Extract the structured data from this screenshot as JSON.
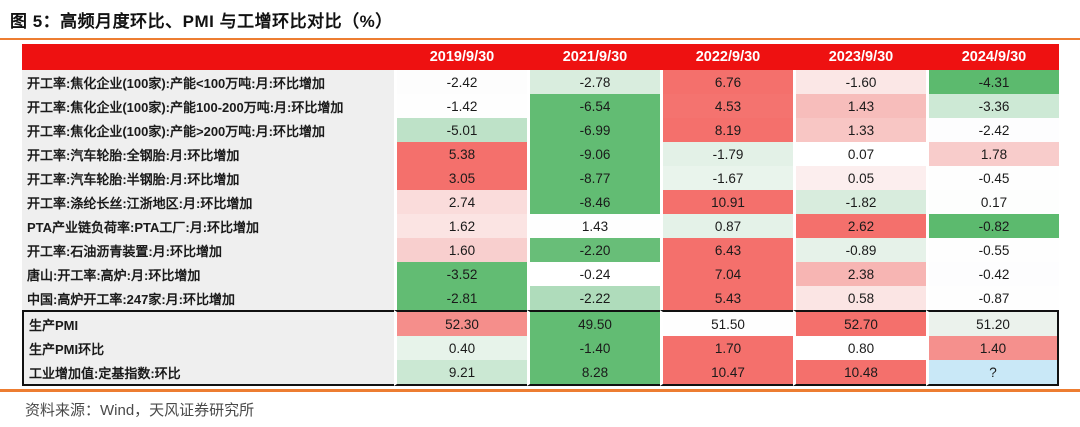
{
  "chart_data": {
    "type": "table",
    "title": "图 5：高频月度环比、PMI 与工增环比对比（%）",
    "columns": [
      "2019/9/30",
      "2021/9/30",
      "2022/9/30",
      "2023/9/30",
      "2024/9/30"
    ],
    "rows": [
      {
        "label": "开工率:焦化企业(100家):产能<100万吨:月:环比增加",
        "values": [
          "-2.42",
          "-2.78",
          "6.76",
          "-1.60",
          "-4.31"
        ],
        "colors": [
          "#FDFDFD",
          "#D9EDDE",
          "#F4706C",
          "#FBE7E6",
          "#5CBA6E"
        ]
      },
      {
        "label": "开工率:焦化企业(100家):产能100-200万吨:月:环比增加",
        "values": [
          "-1.42",
          "-6.54",
          "4.53",
          "1.43",
          "-3.36"
        ],
        "colors": [
          "#FEFEFE",
          "#62BC73",
          "#F4736F",
          "#F7BDBB",
          "#CDE9D5"
        ]
      },
      {
        "label": "开工率:焦化企业(100家):产能>200万吨:月:环比增加",
        "values": [
          "-5.01",
          "-6.99",
          "8.19",
          "1.33",
          "-2.42"
        ],
        "colors": [
          "#BEE2C8",
          "#62BC73",
          "#F4706C",
          "#F8C6C4",
          "#FDFDFE"
        ]
      },
      {
        "label": "开工率:汽车轮胎:全钢胎:月:环比增加",
        "values": [
          "5.38",
          "-9.06",
          "-1.79",
          "0.07",
          "1.78"
        ],
        "colors": [
          "#F4706C",
          "#62BC73",
          "#E3F1E7",
          "#FFFFFF",
          "#F8CCCB"
        ]
      },
      {
        "label": "开工率:汽车轮胎:半钢胎:月:环比增加",
        "values": [
          "3.05",
          "-8.77",
          "-1.67",
          "0.05",
          "-0.45"
        ],
        "colors": [
          "#F4706C",
          "#62BC73",
          "#E9F4EC",
          "#FCEEEE",
          "#FEFEFE"
        ]
      },
      {
        "label": "开工率:涤纶长丝:江浙地区:月:环比增加",
        "values": [
          "2.74",
          "-8.46",
          "10.91",
          "-1.82",
          "0.17"
        ],
        "colors": [
          "#FADCDB",
          "#62BC73",
          "#F4706C",
          "#D8ECDD",
          "#FDFEFD"
        ]
      },
      {
        "label": "PTA产业链负荷率:PTA工厂:月:环比增加",
        "values": [
          "1.62",
          "1.43",
          "0.87",
          "2.62",
          "-0.82"
        ],
        "colors": [
          "#FBE4E3",
          "#FEFEFE",
          "#E4F2E8",
          "#F4706C",
          "#5CBA6E"
        ]
      },
      {
        "label": "开工率:石油沥青装置:月:环比增加",
        "values": [
          "1.60",
          "-2.20",
          "6.43",
          "-0.89",
          "-0.55"
        ],
        "colors": [
          "#F8CFCE",
          "#68BE78",
          "#F4706C",
          "#E6F2E9",
          "#FEFEFE"
        ]
      },
      {
        "label": "唐山:开工率:高炉:月:环比增加",
        "values": [
          "-3.52",
          "-0.24",
          "7.04",
          "2.38",
          "-0.42"
        ],
        "colors": [
          "#62BC73",
          "#FFFFFF",
          "#F4706C",
          "#F7B5B3",
          "#FDFDFE"
        ]
      },
      {
        "label": "中国:高炉开工率:247家:月:环比增加",
        "values": [
          "-2.81",
          "-2.22",
          "5.43",
          "0.58",
          "-0.87"
        ],
        "colors": [
          "#62BC73",
          "#AFDCBB",
          "#F4706C",
          "#FBE5E4",
          "#FEFEFE"
        ]
      }
    ],
    "pmi_rows": [
      {
        "label": "生产PMI",
        "values": [
          "52.30",
          "49.50",
          "51.50",
          "52.70",
          "51.20"
        ],
        "colors": [
          "#F58E8B",
          "#62BC73",
          "#FEFEFE",
          "#F4706C",
          "#EBF2EC"
        ]
      },
      {
        "label": "生产PMI环比",
        "values": [
          "0.40",
          "-1.40",
          "1.70",
          "0.80",
          "1.40"
        ],
        "colors": [
          "#E7F3EA",
          "#62BC73",
          "#F4706C",
          "#FFFFFF",
          "#F5908D"
        ]
      },
      {
        "label": "工业增加值:定基指数:环比",
        "values": [
          "9.21",
          "8.28",
          "10.47",
          "10.48",
          "?"
        ],
        "colors": [
          "#CBE8D3",
          "#62BC73",
          "#F4706C",
          "#F4706C",
          "#C9E8F7"
        ]
      }
    ],
    "source": "资料来源：Wind，天风证券研究所",
    "colors": {
      "header_bg": "#EE1111",
      "accent_orange": "#ED7D31",
      "label_bg": "#EFEFEF",
      "increase_strong_red": "#F4706C",
      "decrease_strong_green": "#62BC73",
      "unknown_cell_blue": "#C9E8F7",
      "box_border": "#111111"
    }
  }
}
